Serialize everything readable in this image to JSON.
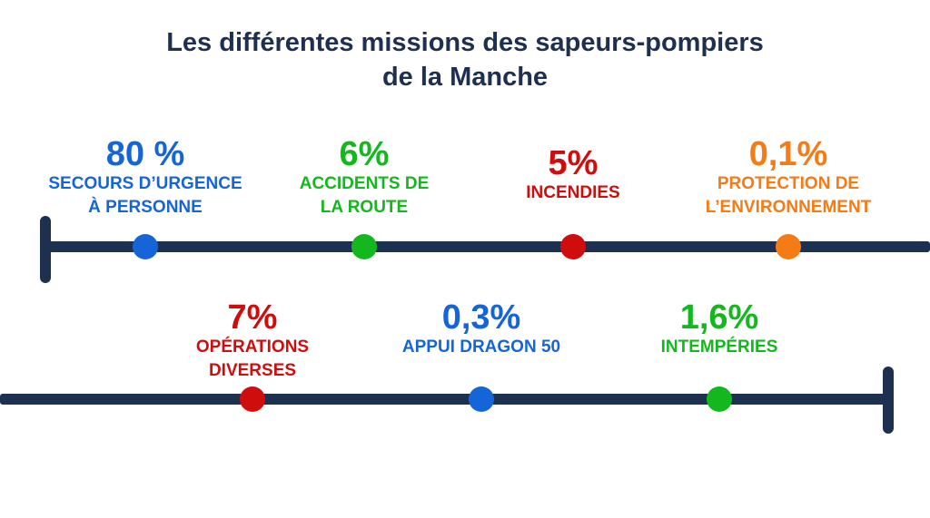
{
  "title": {
    "line1": "Les différentes missions des sapeurs-pompiers",
    "line2": "de la Manche"
  },
  "colors": {
    "line": "#1e3050",
    "blue": "#1565d8",
    "green": "#14b81e",
    "red": "#d00d0d",
    "orange": "#f57b16"
  },
  "missions": [
    {
      "pct": "80 %",
      "line1": "SECOURS D’URGENCE",
      "line2": "À PERSONNE",
      "color": "#1565d8"
    },
    {
      "pct": "6%",
      "line1": "ACCIDENTS DE",
      "line2": "LA ROUTE",
      "color": "#14b81e"
    },
    {
      "pct": "5%",
      "line1": "INCENDIES",
      "line2": "",
      "color": "#d00d0d"
    },
    {
      "pct": "0,1%",
      "line1": "PROTECTION DE",
      "line2": "L’ENVIRONNEMENT",
      "color": "#f57b16"
    },
    {
      "pct": "7%",
      "line1": "OPÉRATIONS",
      "line2": "DIVERSES",
      "color": "#d00d0d"
    },
    {
      "pct": "0,3%",
      "line1": "APPUI DRAGON 50",
      "line2": "",
      "color": "#1565d8"
    },
    {
      "pct": "1,6%",
      "line1": "INTEMPÉRIES",
      "line2": "",
      "color": "#14b81e"
    }
  ]
}
